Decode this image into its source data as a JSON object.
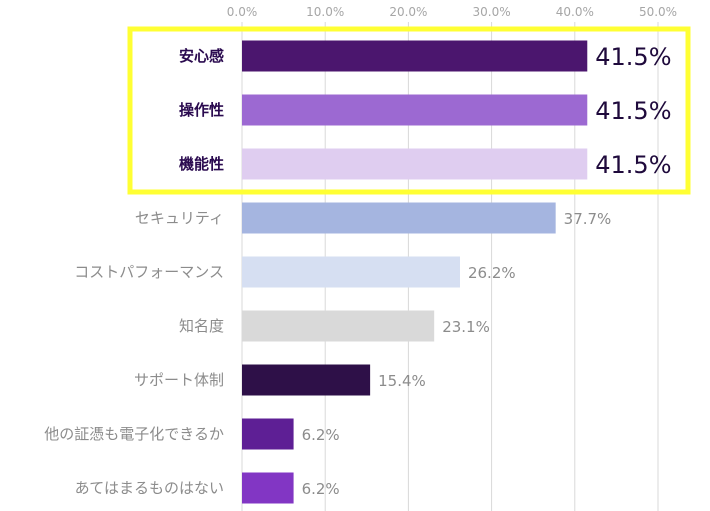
{
  "chart_data": {
    "type": "bar",
    "orientation": "horizontal",
    "title": "",
    "xlabel": "",
    "ylabel": "",
    "xlim": [
      0,
      50
    ],
    "x_ticks": [
      "0.0%",
      "10.0%",
      "20.0%",
      "30.0%",
      "40.0%",
      "50.0%"
    ],
    "grid": true,
    "categories": [
      "安心感",
      "操作性",
      "機能性",
      "セキュリティ",
      "コストパフォーマンス",
      "知名度",
      "サポート体制",
      "他の証憑も電子化できるか",
      "あてはまるものはない"
    ],
    "values": [
      41.5,
      41.5,
      41.5,
      37.7,
      26.2,
      23.1,
      15.4,
      6.2,
      6.2
    ],
    "value_labels": [
      "41.5%",
      "41.5%",
      "41.5%",
      "37.7%",
      "26.2%",
      "23.1%",
      "15.4%",
      "6.2%",
      "6.2%"
    ],
    "bar_colors": [
      "#4b166e",
      "#9c69d2",
      "#dfcdf0",
      "#a5b5e0",
      "#d6dff2",
      "#d9d9d9",
      "#2e1048",
      "#5e1f95",
      "#8236c4"
    ],
    "highlighted": [
      0,
      1,
      2
    ],
    "highlight_color": "#ffff33"
  }
}
